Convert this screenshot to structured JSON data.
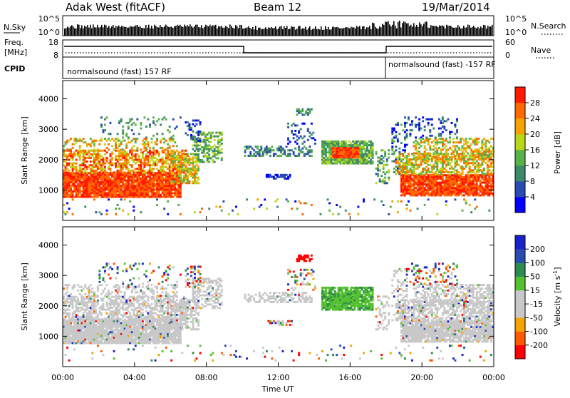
{
  "header": {
    "station": "Adak West (fitACF)",
    "beam": "Beam 12",
    "date": "19/Mar/2014"
  },
  "noise_panel": {
    "left_label": "N.Sky",
    "left_ticks": [
      "10^5",
      "10^0"
    ],
    "right_label": "N.Search",
    "right_ticks": [
      "10^5",
      "10^0"
    ]
  },
  "freq_panel": {
    "left_label_line1": "Freq.",
    "left_label_line2": "[MHz]",
    "left_ticks": [
      "18",
      "8"
    ],
    "right_label": "Nave",
    "right_ticks": [
      "60",
      "0"
    ]
  },
  "cpid_panel": {
    "label": "CPID",
    "mode_1": "normalsound (fast) 157 RF",
    "mode_2": "normalsound (fast) -157 RF"
  },
  "colors": {
    "power_scale": [
      "#0000ff",
      "#2a4cb0",
      "#3d8a6a",
      "#59b14a",
      "#b8d61a",
      "#f5a300",
      "#ff6a00",
      "#ff1a00"
    ],
    "velocity_scale": [
      "#ff0000",
      "#ff5a00",
      "#f5a300",
      "#c8c8c8",
      "#c8c8c8",
      "#56c130",
      "#2f8a52",
      "#2a4cb0",
      "#1c22c9"
    ],
    "ground_scatter": "#c8c8c8"
  },
  "chart_data": [
    {
      "type": "heatmap",
      "name": "power",
      "ylabel": "Slant Range [km]",
      "ylim": [
        0,
        4600
      ],
      "yticks": [
        "1000",
        "2000",
        "3000",
        "4000"
      ],
      "colorbar_label": "Power [dB]",
      "colorbar_range": [
        0,
        32
      ],
      "colorbar_ticks": [
        "4",
        "8",
        "12",
        "16",
        "20",
        "24",
        "28"
      ]
    },
    {
      "type": "heatmap",
      "name": "velocity",
      "ylabel": "Slant Range [km]",
      "ylim": [
        0,
        4600
      ],
      "yticks": [
        "1000",
        "2000",
        "3000",
        "4000"
      ],
      "colorbar_label": "Velocity [m s",
      "colorbar_sup": "-1",
      "colorbar_suffix": "]",
      "colorbar_ticks": [
        "200",
        "100",
        "50",
        "15",
        "-15",
        "-50",
        "-100",
        "-200"
      ]
    }
  ],
  "xaxis": {
    "label": "Time UT",
    "ticks": [
      "00:00",
      "04:00",
      "08:00",
      "12:00",
      "16:00",
      "20:00",
      "00:00"
    ]
  }
}
